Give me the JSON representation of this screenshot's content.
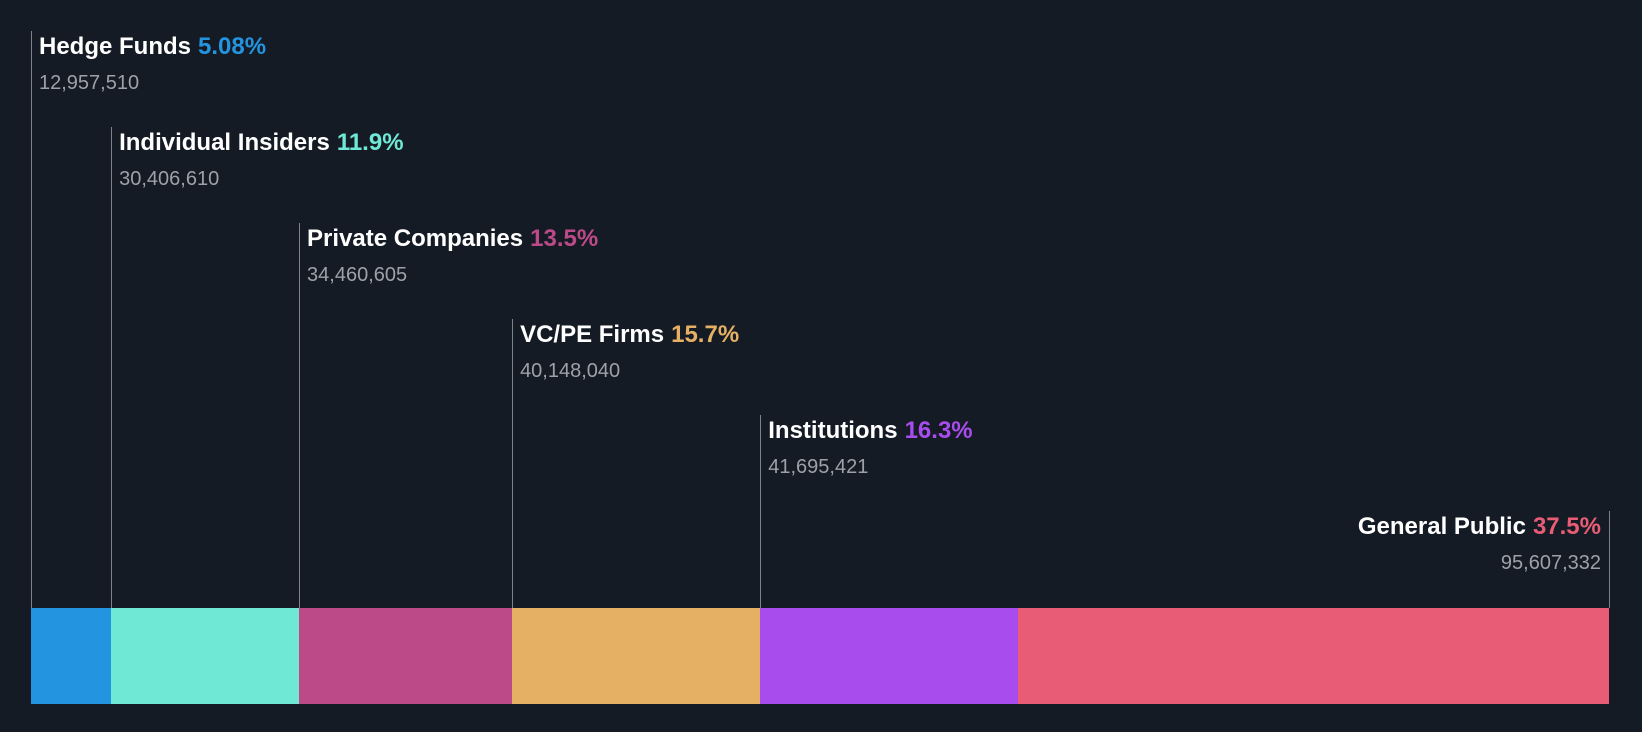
{
  "chart_data": {
    "type": "bar",
    "orientation": "horizontal-stacked",
    "title": "",
    "xlabel": "",
    "ylabel": "",
    "legend": "none",
    "grid": false,
    "series": [
      {
        "name": "Hedge Funds",
        "percent_label": "5.08%",
        "percent": 5.08,
        "shares": 12957510,
        "shares_label": "12,957,510",
        "color": "#2394e0"
      },
      {
        "name": "Individual Insiders",
        "percent_label": "11.9%",
        "percent": 11.9,
        "shares": 30406610,
        "shares_label": "30,406,610",
        "color": "#6fe8d6"
      },
      {
        "name": "Private Companies",
        "percent_label": "13.5%",
        "percent": 13.5,
        "shares": 34460605,
        "shares_label": "34,460,605",
        "color": "#bd4a88"
      },
      {
        "name": "VC/PE Firms",
        "percent_label": "15.7%",
        "percent": 15.7,
        "shares": 40148040,
        "shares_label": "40,148,040",
        "color": "#e6b064"
      },
      {
        "name": "Institutions",
        "percent_label": "16.3%",
        "percent": 16.3,
        "shares": 41695421,
        "shares_label": "41,695,421",
        "color": "#a84ced"
      },
      {
        "name": "General Public",
        "percent_label": "37.5%",
        "percent": 37.5,
        "shares": 95607332,
        "shares_label": "95,607,332",
        "color": "#e85d75"
      }
    ]
  }
}
